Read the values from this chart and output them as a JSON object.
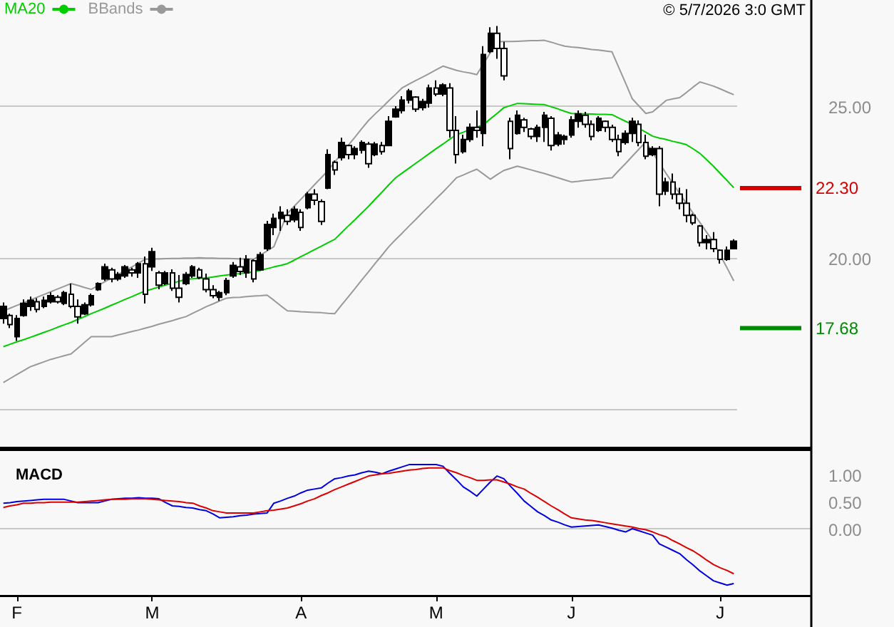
{
  "chart_data": [
    {
      "type": "candlestick",
      "color": "#000000",
      "legend": "top left",
      "grid": "y",
      "tick_labels": "y",
      "marker": "none",
      "annotations": [
        "© 5/7/2026 3:0 GMT"
      ],
      "categories": [
        null,
        null,
        null,
        null,
        null,
        null,
        null,
        null,
        null,
        null,
        null,
        null,
        null,
        null,
        null,
        null,
        null,
        null,
        null,
        null,
        null,
        null,
        null,
        null,
        null,
        null,
        null,
        null,
        null,
        null,
        null,
        null,
        null,
        null,
        null,
        null,
        null,
        null,
        null,
        null,
        null,
        null,
        null,
        null,
        null,
        null,
        null,
        null,
        null,
        null,
        null,
        null,
        null,
        null,
        null,
        null,
        null,
        null,
        null,
        null,
        null,
        null,
        null,
        null,
        null,
        null,
        null,
        null,
        null,
        null,
        null,
        null,
        null,
        null,
        null,
        null,
        null,
        null,
        null,
        null,
        null,
        null,
        null,
        null,
        null,
        null,
        null,
        null,
        null,
        null,
        null,
        null,
        null,
        null,
        null,
        null,
        null,
        null,
        null,
        null,
        null,
        null,
        null,
        null,
        null,
        null,
        null,
        null,
        null
      ],
      "ylim": [
        13.7,
        28.5
      ],
      "yticks": [
        {
          "value": 15,
          "label": null
        },
        {
          "value": 20,
          "label": "20.00"
        },
        {
          "value": 25,
          "label": "25.00"
        }
      ],
      "ref_lines": [
        {
          "axis": "y",
          "value": 22.3,
          "label": "22.30",
          "color": "#d40000"
        },
        {
          "axis": "y",
          "value": 17.68,
          "label": "17.68",
          "color": "#008c00"
        }
      ],
      "ohlc": [
        [
          18.0,
          18.53,
          17.83,
          18.4
        ],
        [
          18.1,
          18.16,
          17.68,
          17.8
        ],
        [
          17.4,
          18.11,
          17.26,
          18.0
        ],
        [
          18.1,
          18.63,
          18.06,
          18.5
        ],
        [
          18.4,
          18.72,
          18.25,
          18.6
        ],
        [
          18.55,
          18.67,
          18.2,
          18.3
        ],
        [
          18.4,
          18.72,
          18.34,
          18.6
        ],
        [
          18.55,
          18.86,
          18.49,
          18.75
        ],
        [
          18.7,
          18.77,
          18.49,
          18.55
        ],
        [
          18.5,
          18.91,
          18.44,
          18.85
        ],
        [
          18.8,
          19.15,
          18.34,
          18.4
        ],
        [
          18.4,
          18.63,
          17.83,
          18.05
        ],
        [
          18.15,
          18.53,
          18.11,
          18.45
        ],
        [
          18.45,
          18.82,
          18.39,
          18.75
        ],
        [
          18.95,
          19.19,
          18.91,
          19.15
        ],
        [
          19.3,
          19.81,
          19.24,
          19.7
        ],
        [
          19.6,
          19.67,
          19.19,
          19.3
        ],
        [
          19.3,
          19.53,
          19.24,
          19.45
        ],
        [
          19.4,
          19.76,
          19.34,
          19.7
        ],
        [
          19.6,
          19.67,
          19.38,
          19.5
        ],
        [
          19.5,
          19.86,
          19.34,
          19.8
        ],
        [
          19.8,
          20.04,
          18.49,
          18.8
        ],
        [
          19.7,
          20.33,
          19.57,
          20.2
        ],
        [
          19.5,
          19.57,
          18.96,
          19.1
        ],
        [
          19.15,
          19.57,
          19.1,
          19.5
        ],
        [
          19.5,
          19.62,
          18.91,
          19.0
        ],
        [
          19.0,
          19.43,
          18.53,
          18.7
        ],
        [
          19.15,
          19.53,
          19.1,
          19.45
        ],
        [
          19.4,
          19.76,
          19.34,
          19.7
        ],
        [
          19.6,
          19.67,
          19.29,
          19.35
        ],
        [
          19.3,
          19.48,
          18.86,
          18.95
        ],
        [
          18.95,
          19.1,
          18.67,
          18.75
        ],
        [
          18.7,
          18.91,
          18.58,
          18.85
        ],
        [
          18.85,
          19.34,
          18.77,
          19.25
        ],
        [
          19.4,
          19.86,
          19.34,
          19.75
        ],
        [
          19.7,
          20.0,
          19.43,
          19.55
        ],
        [
          19.5,
          20.09,
          19.34,
          19.95
        ],
        [
          19.9,
          19.95,
          19.19,
          19.3
        ],
        [
          19.6,
          20.19,
          19.57,
          20.1
        ],
        [
          20.3,
          21.22,
          20.23,
          21.1
        ],
        [
          21.0,
          21.46,
          20.75,
          21.3
        ],
        [
          21.3,
          21.7,
          20.89,
          21.5
        ],
        [
          21.4,
          21.6,
          21.08,
          21.2
        ],
        [
          21.25,
          21.7,
          21.17,
          21.6
        ],
        [
          21.5,
          21.6,
          20.89,
          21.0
        ],
        [
          21.65,
          22.17,
          21.6,
          22.1
        ],
        [
          22.1,
          22.26,
          21.74,
          21.9
        ],
        [
          21.85,
          21.93,
          21.08,
          21.2
        ],
        [
          22.3,
          23.58,
          22.26,
          23.4
        ],
        [
          23.15,
          23.21,
          22.73,
          22.9
        ],
        [
          23.3,
          23.96,
          23.21,
          23.8
        ],
        [
          23.7,
          23.73,
          23.25,
          23.4
        ],
        [
          23.4,
          23.68,
          23.25,
          23.6
        ],
        [
          23.55,
          23.87,
          23.44,
          23.8
        ],
        [
          23.75,
          23.82,
          22.97,
          23.1
        ],
        [
          23.4,
          23.82,
          23.35,
          23.75
        ],
        [
          23.7,
          23.82,
          23.4,
          23.5
        ],
        [
          23.7,
          24.67,
          23.68,
          24.5
        ],
        [
          24.65,
          25.0,
          24.62,
          24.9
        ],
        [
          24.85,
          25.33,
          24.76,
          25.2
        ],
        [
          25.2,
          25.57,
          25.09,
          25.5
        ],
        [
          25.3,
          25.33,
          24.81,
          24.9
        ],
        [
          24.95,
          25.24,
          24.86,
          25.15
        ],
        [
          25.1,
          25.71,
          24.95,
          25.6
        ],
        [
          25.6,
          25.85,
          25.33,
          25.4
        ],
        [
          25.4,
          25.76,
          25.33,
          25.7
        ],
        [
          25.6,
          25.76,
          23.96,
          24.2
        ],
        [
          24.2,
          24.67,
          23.11,
          23.4
        ],
        [
          23.5,
          24.06,
          23.44,
          23.9
        ],
        [
          23.9,
          24.43,
          23.82,
          24.3
        ],
        [
          24.3,
          24.86,
          23.96,
          24.2
        ],
        [
          24.1,
          26.98,
          23.68,
          26.7
        ],
        [
          26.8,
          27.6,
          26.75,
          27.4
        ],
        [
          27.4,
          27.64,
          26.56,
          26.9
        ],
        [
          26.9,
          27.12,
          25.85,
          26.0
        ],
        [
          24.5,
          24.62,
          23.25,
          23.6
        ],
        [
          24.1,
          24.86,
          24.06,
          24.7
        ],
        [
          24.55,
          24.62,
          24.15,
          24.3
        ],
        [
          24.25,
          24.29,
          23.91,
          24.0
        ],
        [
          24.0,
          24.39,
          23.82,
          24.3
        ],
        [
          24.3,
          24.81,
          23.82,
          24.7
        ],
        [
          24.6,
          24.67,
          23.54,
          23.7
        ],
        [
          23.75,
          24.15,
          23.68,
          24.05
        ],
        [
          23.9,
          24.06,
          23.73,
          24.0
        ],
        [
          24.05,
          24.67,
          23.96,
          24.55
        ],
        [
          24.5,
          24.86,
          24.29,
          24.75
        ],
        [
          24.7,
          24.81,
          24.29,
          24.4
        ],
        [
          24.4,
          24.53,
          23.87,
          24.0
        ],
        [
          24.2,
          24.67,
          24.15,
          24.6
        ],
        [
          24.5,
          24.53,
          24.15,
          24.3
        ],
        [
          24.3,
          24.39,
          23.82,
          23.9
        ],
        [
          23.9,
          24.06,
          23.35,
          23.5
        ],
        [
          23.8,
          24.2,
          23.73,
          24.1
        ],
        [
          24.1,
          24.62,
          23.82,
          24.5
        ],
        [
          24.4,
          24.53,
          23.68,
          23.8
        ],
        [
          23.8,
          24.06,
          23.25,
          23.35
        ],
        [
          23.4,
          23.68,
          23.35,
          23.6
        ],
        [
          23.6,
          23.68,
          21.7,
          22.1
        ],
        [
          22.2,
          22.64,
          22.07,
          22.5
        ],
        [
          22.5,
          22.78,
          21.93,
          22.1
        ],
        [
          22.1,
          22.31,
          21.6,
          21.8
        ],
        [
          21.8,
          22.26,
          21.17,
          21.4
        ],
        [
          21.4,
          21.46,
          21.08,
          21.15
        ],
        [
          21.05,
          21.08,
          20.37,
          20.5
        ],
        [
          20.5,
          20.75,
          20.28,
          20.6
        ],
        [
          20.6,
          20.85,
          20.19,
          20.3
        ],
        [
          20.25,
          20.28,
          19.81,
          19.95
        ],
        [
          19.95,
          20.37,
          19.9,
          20.25
        ],
        [
          20.3,
          20.61,
          20.28,
          20.55
        ]
      ],
      "series": [
        {
          "name": "MA20",
          "type": "line",
          "color": "#00cc00",
          "values": [
            17.07,
            17.15,
            17.23,
            17.3,
            17.38,
            17.46,
            17.54,
            17.62,
            17.71,
            17.79,
            17.87,
            17.97,
            18.06,
            18.16,
            18.25,
            18.34,
            18.44,
            18.53,
            18.63,
            18.72,
            18.82,
            18.91,
            18.97,
            19.04,
            19.1,
            19.16,
            19.23,
            19.29,
            19.31,
            19.32,
            19.34,
            19.37,
            19.4,
            19.43,
            19.46,
            19.48,
            19.51,
            19.53,
            19.59,
            19.64,
            19.7,
            19.75,
            19.81,
            19.92,
            20.04,
            20.15,
            20.27,
            20.38,
            20.5,
            20.61,
            20.83,
            21.05,
            21.26,
            21.48,
            21.7,
            21.94,
            22.17,
            22.41,
            22.64,
            22.8,
            22.96,
            23.12,
            23.28,
            23.44,
            23.6,
            23.75,
            23.91,
            24.06,
            24.14,
            24.23,
            24.31,
            24.39,
            24.58,
            24.76,
            24.95,
            25.02,
            25.09,
            25.08,
            25.07,
            25.06,
            25.05,
            24.98,
            24.91,
            24.83,
            24.76,
            24.75,
            24.75,
            24.74,
            24.73,
            24.73,
            24.72,
            24.61,
            24.5,
            24.39,
            24.26,
            24.14,
            24.01,
            23.95,
            23.9,
            23.84,
            23.79,
            23.73,
            23.59,
            23.44,
            23.23,
            23.02,
            22.78,
            22.55,
            22.31
          ]
        },
        {
          "name": "BBands",
          "type": "line",
          "color": "#999999",
          "values": [
            18.25,
            18.34,
            18.43,
            18.52,
            18.61,
            18.7,
            18.79,
            18.88,
            18.97,
            19.06,
            19.15,
            19.09,
            19.02,
            18.96,
            19.08,
            19.21,
            19.33,
            19.46,
            19.58,
            19.7,
            19.83,
            19.95,
            19.96,
            19.96,
            19.97,
            19.98,
            19.98,
            19.99,
            19.99,
            20.0,
            19.99,
            19.99,
            19.98,
            19.98,
            19.97,
            19.96,
            19.96,
            19.95,
            20.09,
            20.23,
            20.37,
            20.92,
            21.46,
            21.7,
            21.93,
            22.17,
            22.41,
            22.64,
            22.88,
            23.16,
            23.43,
            23.71,
            23.98,
            24.26,
            24.53,
            24.75,
            24.96,
            25.18,
            25.39,
            25.61,
            25.73,
            25.85,
            25.96,
            26.08,
            26.2,
            26.32,
            26.25,
            26.18,
            26.13,
            26.09,
            26.04,
            26.4,
            26.76,
            27.12,
            27.13,
            27.13,
            27.14,
            27.15,
            27.16,
            27.16,
            27.17,
            27.11,
            27.04,
            26.98,
            26.95,
            26.93,
            26.9,
            26.87,
            26.85,
            26.82,
            26.79,
            26.27,
            25.76,
            25.24,
            25.0,
            24.76,
            24.81,
            25.0,
            25.19,
            25.24,
            25.28,
            25.45,
            25.63,
            25.8,
            25.73,
            25.66,
            25.57,
            25.47,
            25.38
          ]
        },
        {
          "type": "line",
          "color": "#999999",
          "values": [
            15.89,
            16.02,
            16.15,
            16.28,
            16.41,
            16.49,
            16.57,
            16.65,
            16.71,
            16.77,
            16.83,
            17.02,
            17.21,
            17.4,
            17.4,
            17.4,
            17.4,
            17.46,
            17.51,
            17.57,
            17.62,
            17.68,
            17.74,
            17.81,
            17.87,
            17.93,
            18.0,
            18.06,
            18.17,
            18.28,
            18.39,
            18.48,
            18.58,
            18.67,
            18.69,
            18.7,
            18.72,
            18.74,
            18.75,
            18.77,
            18.6,
            18.42,
            18.25,
            18.24,
            18.22,
            18.21,
            18.2,
            18.19,
            18.17,
            18.16,
            18.44,
            18.71,
            18.99,
            19.27,
            19.54,
            19.82,
            20.09,
            20.37,
            20.6,
            20.82,
            21.05,
            21.27,
            21.5,
            21.72,
            21.95,
            22.17,
            22.4,
            22.64,
            22.73,
            22.83,
            22.92,
            22.76,
            22.59,
            22.74,
            22.88,
            22.95,
            23.02,
            22.96,
            22.9,
            22.84,
            22.78,
            22.71,
            22.64,
            22.57,
            22.5,
            22.52,
            22.55,
            22.57,
            22.59,
            22.62,
            22.64,
            22.88,
            23.11,
            23.35,
            23.59,
            23.82,
            23.47,
            23.13,
            22.78,
            22.45,
            22.12,
            21.79,
            21.47,
            21.16,
            20.84,
            20.52,
            20.09,
            19.67,
            19.24
          ]
        }
      ]
    },
    {
      "type": "line",
      "title": "MACD",
      "marker": "none",
      "categories": [
        null,
        null,
        "F",
        null,
        null,
        null,
        null,
        null,
        null,
        null,
        null,
        null,
        null,
        null,
        null,
        null,
        null,
        null,
        null,
        null,
        null,
        null,
        "M",
        null,
        null,
        null,
        null,
        null,
        null,
        null,
        null,
        null,
        null,
        null,
        null,
        null,
        null,
        null,
        null,
        null,
        null,
        null,
        null,
        null,
        "A",
        null,
        null,
        null,
        null,
        null,
        null,
        null,
        null,
        null,
        null,
        null,
        null,
        null,
        null,
        null,
        null,
        null,
        null,
        null,
        "M",
        null,
        null,
        null,
        null,
        null,
        null,
        null,
        null,
        null,
        null,
        null,
        null,
        null,
        null,
        null,
        null,
        null,
        null,
        null,
        "J",
        null,
        null,
        null,
        null,
        null,
        null,
        null,
        null,
        null,
        null,
        null,
        null,
        null,
        null,
        null,
        null,
        null,
        null,
        null,
        null,
        null,
        "J",
        null,
        null
      ],
      "ylim": [
        -1.26,
        1.47
      ],
      "yticks": [
        {
          "value": 0,
          "label": "0.00"
        },
        {
          "value": 0.5,
          "label": "0.50"
        },
        {
          "value": 1,
          "label": "1.00"
        }
      ],
      "ref_lines": [
        {
          "axis": "y",
          "value": 0,
          "color": "#c8c8c8"
        }
      ],
      "series": [
        {
          "color": "#0000dd",
          "values": [
            0.47,
            0.48,
            0.5,
            0.51,
            0.52,
            0.53,
            0.54,
            0.54,
            0.54,
            0.54,
            0.51,
            0.48,
            0.48,
            0.48,
            0.48,
            0.51,
            0.54,
            0.55,
            0.56,
            0.56,
            0.57,
            0.56,
            0.56,
            0.55,
            0.48,
            0.42,
            0.41,
            0.39,
            0.38,
            0.35,
            0.33,
            0.27,
            0.2,
            0.21,
            0.22,
            0.24,
            0.25,
            0.27,
            0.28,
            0.29,
            0.47,
            0.51,
            0.56,
            0.6,
            0.66,
            0.71,
            0.73,
            0.75,
            0.84,
            0.92,
            0.94,
            0.97,
            0.99,
            1.03,
            1.06,
            1.04,
            1.01,
            1.06,
            1.1,
            1.14,
            1.18,
            1.18,
            1.18,
            1.18,
            1.18,
            1.15,
            1.02,
            0.9,
            0.77,
            0.69,
            0.6,
            0.73,
            0.86,
            0.97,
            0.92,
            0.78,
            0.65,
            0.51,
            0.41,
            0.31,
            0.24,
            0.16,
            0.12,
            0.07,
            0.03,
            0.04,
            0.05,
            0.06,
            0.07,
            0.04,
            0.01,
            -0.03,
            -0.06,
            0.0,
            -0.04,
            -0.08,
            -0.12,
            -0.28,
            -0.34,
            -0.4,
            -0.46,
            -0.57,
            -0.67,
            -0.78,
            -0.87,
            -0.96,
            -1.0,
            -1.04,
            -1.01
          ]
        },
        {
          "color": "#dd0000",
          "values": [
            0.39,
            0.42,
            0.44,
            0.47,
            0.47,
            0.48,
            0.48,
            0.49,
            0.49,
            0.49,
            0.49,
            0.49,
            0.5,
            0.51,
            0.52,
            0.53,
            0.54,
            0.54,
            0.54,
            0.55,
            0.55,
            0.55,
            0.54,
            0.53,
            0.52,
            0.51,
            0.5,
            0.48,
            0.47,
            0.42,
            0.38,
            0.33,
            0.31,
            0.29,
            0.29,
            0.29,
            0.29,
            0.29,
            0.31,
            0.33,
            0.34,
            0.36,
            0.38,
            0.42,
            0.46,
            0.51,
            0.55,
            0.61,
            0.66,
            0.72,
            0.77,
            0.82,
            0.87,
            0.92,
            0.97,
            0.99,
            1.01,
            1.02,
            1.04,
            1.06,
            1.08,
            1.09,
            1.11,
            1.12,
            1.12,
            1.12,
            1.07,
            1.03,
            0.98,
            0.94,
            0.89,
            0.89,
            0.9,
            0.9,
            0.86,
            0.82,
            0.77,
            0.73,
            0.65,
            0.58,
            0.5,
            0.42,
            0.35,
            0.27,
            0.2,
            0.18,
            0.16,
            0.15,
            0.13,
            0.11,
            0.09,
            0.07,
            0.05,
            0.03,
            0.0,
            -0.02,
            -0.06,
            -0.11,
            -0.15,
            -0.22,
            -0.28,
            -0.35,
            -0.41,
            -0.49,
            -0.58,
            -0.66,
            -0.72,
            -0.77,
            -0.83
          ]
        }
      ]
    }
  ]
}
